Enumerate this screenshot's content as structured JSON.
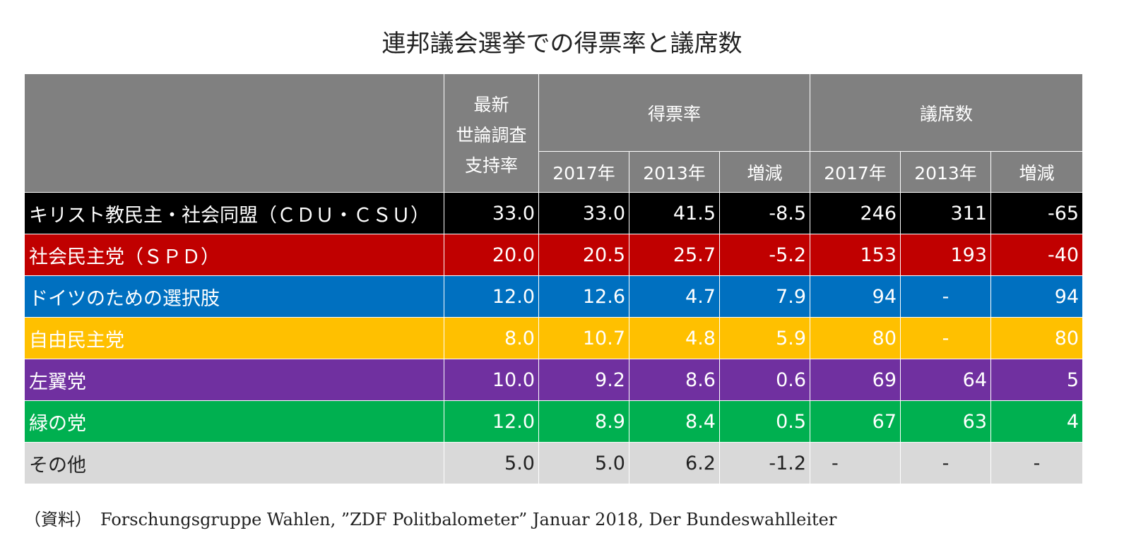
{
  "title": "連邦議会選挙での得票率と議席数",
  "header": {
    "poll": "最新\n世論調査\n支持率",
    "vote_share": "得票率",
    "seats": "議席数",
    "sub": [
      "2017年",
      "2013年",
      "増減",
      "2017年",
      "2013年",
      "増減"
    ]
  },
  "colors": {
    "header": "#808080",
    "cdu": "#000000",
    "spd": "#c00000",
    "afd": "#0070c0",
    "fdp": "#ffc000",
    "linke": "#7030a0",
    "greens": "#00b050",
    "others": "#d9d9d9"
  },
  "rows": [
    {
      "party": "キリスト教民主・社会同盟（ＣＤＵ・ＣＳＵ）",
      "poll": "33.0",
      "vote2017": "33.0",
      "vote2013": "41.5",
      "vote_change": "-8.5",
      "seats2017": "246",
      "seats2013": "311",
      "seats_change": "-65"
    },
    {
      "party": "社会民主党（ＳＰＤ）",
      "poll": "20.0",
      "vote2017": "20.5",
      "vote2013": "25.7",
      "vote_change": "-5.2",
      "seats2017": "153",
      "seats2013": "193",
      "seats_change": "-40"
    },
    {
      "party": "ドイツのための選択肢",
      "poll": "12.0",
      "vote2017": "12.6",
      "vote2013": "4.7",
      "vote_change": "7.9",
      "seats2017": "94",
      "seats2013": "-",
      "seats_change": "94"
    },
    {
      "party": "自由民主党",
      "poll": "8.0",
      "vote2017": "10.7",
      "vote2013": "4.8",
      "vote_change": "5.9",
      "seats2017": "80",
      "seats2013": "-",
      "seats_change": "80"
    },
    {
      "party": "左翼党",
      "poll": "10.0",
      "vote2017": "9.2",
      "vote2013": "8.6",
      "vote_change": "0.6",
      "seats2017": "69",
      "seats2013": "64",
      "seats_change": "5"
    },
    {
      "party": "緑の党",
      "poll": "12.0",
      "vote2017": "8.9",
      "vote2013": "8.4",
      "vote_change": "0.5",
      "seats2017": "67",
      "seats2013": "63",
      "seats_change": "4"
    },
    {
      "party": "その他",
      "poll": "5.0",
      "vote2017": "5.0",
      "vote2013": "6.2",
      "vote_change": "-1.2",
      "seats2017": "-",
      "seats2013": "-",
      "seats_change": "-"
    }
  ],
  "source": "（資料）　Forschungsgruppe Wahlen, ”ZDF Politbalometer” Januar 2018, Der Bundeswahlleiter"
}
